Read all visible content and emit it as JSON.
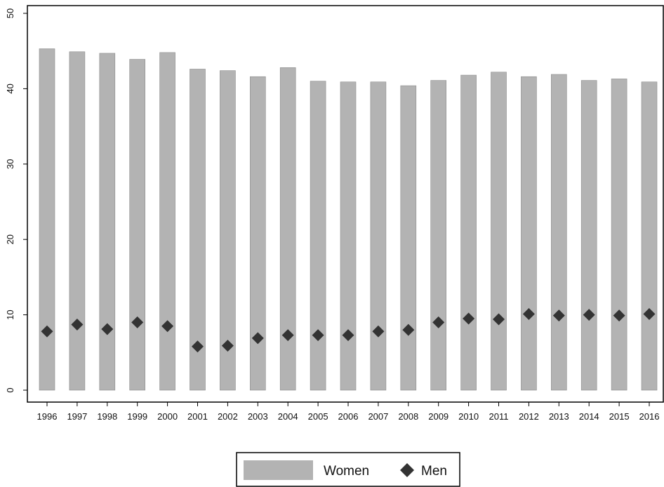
{
  "chart_data": {
    "type": "bar",
    "categories": [
      "1996",
      "1997",
      "1998",
      "1999",
      "2000",
      "2001",
      "2002",
      "2003",
      "2004",
      "2005",
      "2006",
      "2007",
      "2008",
      "2009",
      "2010",
      "2011",
      "2012",
      "2013",
      "2014",
      "2015",
      "2016"
    ],
    "series": [
      {
        "name": "Women",
        "kind": "bar",
        "color": "#b3b3b3",
        "values": [
          45.3,
          44.9,
          44.7,
          43.9,
          44.8,
          42.6,
          42.4,
          41.6,
          42.8,
          41.0,
          40.9,
          40.9,
          40.4,
          41.1,
          41.8,
          42.2,
          41.6,
          41.9,
          41.1,
          41.3,
          40.9
        ]
      },
      {
        "name": "Men",
        "kind": "diamond-marker",
        "color": "#333333",
        "values": [
          7.8,
          8.7,
          8.1,
          9.0,
          8.5,
          5.8,
          5.9,
          6.9,
          7.3,
          7.3,
          7.3,
          7.8,
          8.0,
          9.0,
          9.5,
          9.4,
          10.1,
          9.9,
          10.0,
          9.9,
          10.1
        ]
      }
    ],
    "yticks": [
      "0",
      "10",
      "20",
      "30",
      "40",
      "50"
    ],
    "ylim": [
      0,
      50
    ],
    "grid": false,
    "legend_position": "bottom-center",
    "title": "",
    "xlabel": "",
    "ylabel": ""
  }
}
